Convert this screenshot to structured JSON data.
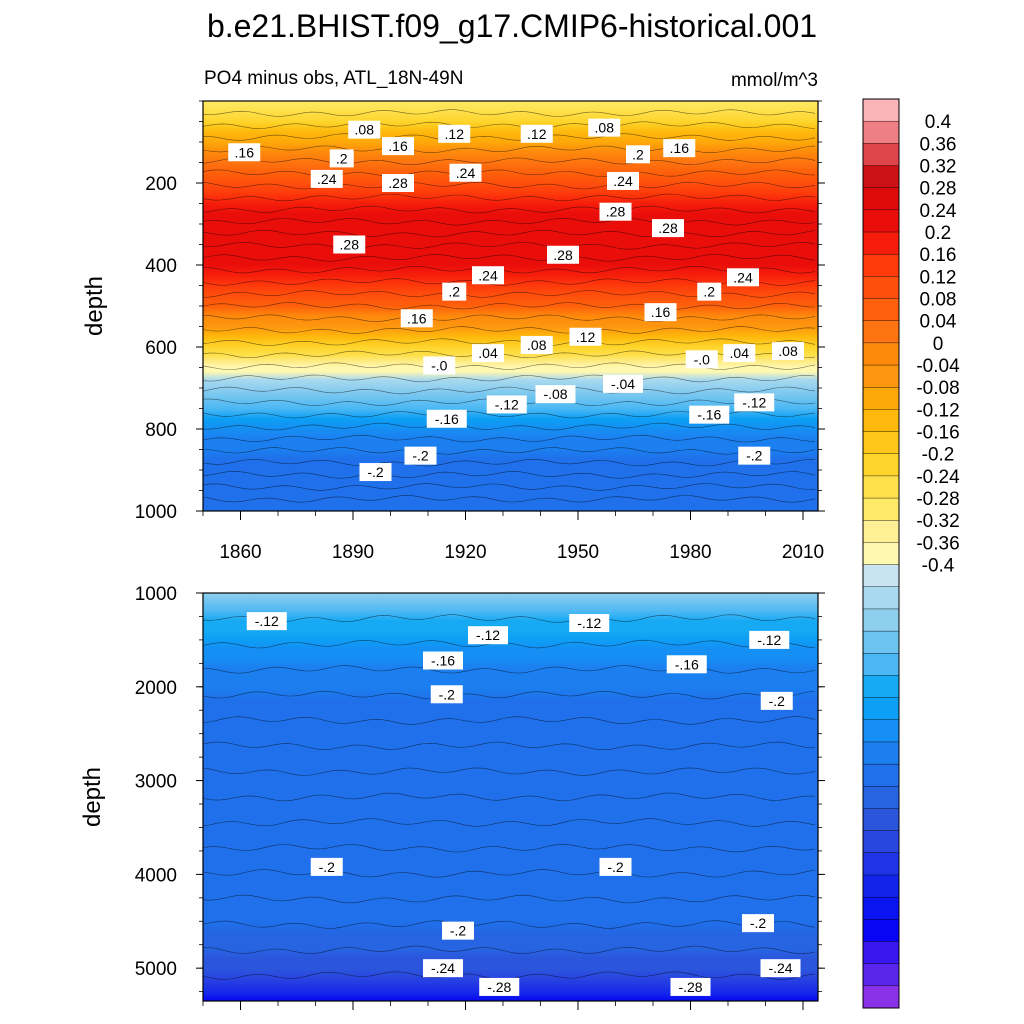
{
  "chart_data": [
    {
      "type": "heatmap",
      "panel": "upper",
      "title": "b.e21.BHIST.f09_g17.CMIP6-historical.001",
      "subtitle_left": "PO4 minus obs, ATL_18N-49N",
      "subtitle_right": "mmol/m^3",
      "xlabel": "",
      "ylabel": "depth",
      "xlim": [
        1850,
        2014
      ],
      "ylim": [
        1000,
        0
      ],
      "x_ticks": [
        "1860",
        "1890",
        "1920",
        "1950",
        "1980",
        "2010"
      ],
      "x_tick_values": [
        1860,
        1890,
        1920,
        1950,
        1980,
        2010
      ],
      "y_ticks": [
        "200",
        "400",
        "600",
        "800",
        "1000"
      ],
      "y_tick_values": [
        200,
        400,
        600,
        800,
        1000
      ],
      "depth_profile": [
        {
          "depth": 0,
          "value": 0.04
        },
        {
          "depth": 50,
          "value": 0.08
        },
        {
          "depth": 100,
          "value": 0.15
        },
        {
          "depth": 150,
          "value": 0.2
        },
        {
          "depth": 200,
          "value": 0.25
        },
        {
          "depth": 250,
          "value": 0.29
        },
        {
          "depth": 300,
          "value": 0.31
        },
        {
          "depth": 350,
          "value": 0.315
        },
        {
          "depth": 400,
          "value": 0.3
        },
        {
          "depth": 450,
          "value": 0.27
        },
        {
          "depth": 500,
          "value": 0.22
        },
        {
          "depth": 550,
          "value": 0.16
        },
        {
          "depth": 600,
          "value": 0.09
        },
        {
          "depth": 640,
          "value": 0.02
        },
        {
          "depth": 660,
          "value": -0.005
        },
        {
          "depth": 700,
          "value": -0.06
        },
        {
          "depth": 750,
          "value": -0.11
        },
        {
          "depth": 800,
          "value": -0.16
        },
        {
          "depth": 850,
          "value": -0.19
        },
        {
          "depth": 900,
          "value": -0.2
        },
        {
          "depth": 1000,
          "value": -0.2
        }
      ],
      "contour_labels": [
        {
          "text": ".08",
          "year": 1893,
          "depth": 70
        },
        {
          "text": ".16",
          "year": 1861,
          "depth": 125
        },
        {
          "text": ".16",
          "year": 1902,
          "depth": 110
        },
        {
          "text": ".12",
          "year": 1917,
          "depth": 80
        },
        {
          "text": ".12",
          "year": 1939,
          "depth": 80
        },
        {
          "text": ".08",
          "year": 1957,
          "depth": 65
        },
        {
          "text": ".16",
          "year": 1977,
          "depth": 115
        },
        {
          "text": ".2",
          "year": 1966,
          "depth": 130
        },
        {
          "text": ".2",
          "year": 1887,
          "depth": 140
        },
        {
          "text": ".24",
          "year": 1883,
          "depth": 190
        },
        {
          "text": ".28",
          "year": 1902,
          "depth": 200
        },
        {
          "text": ".24",
          "year": 1920,
          "depth": 175
        },
        {
          "text": ".24",
          "year": 1962,
          "depth": 195
        },
        {
          "text": ".28",
          "year": 1960,
          "depth": 270
        },
        {
          "text": ".28",
          "year": 1974,
          "depth": 310
        },
        {
          "text": ".28",
          "year": 1889,
          "depth": 350
        },
        {
          "text": ".28",
          "year": 1946,
          "depth": 375
        },
        {
          "text": ".24",
          "year": 1926,
          "depth": 425
        },
        {
          "text": ".2",
          "year": 1917,
          "depth": 465
        },
        {
          "text": ".24",
          "year": 1994,
          "depth": 430
        },
        {
          "text": ".2",
          "year": 1985,
          "depth": 465
        },
        {
          "text": ".16",
          "year": 1907,
          "depth": 530
        },
        {
          "text": ".16",
          "year": 1972,
          "depth": 515
        },
        {
          "text": ".12",
          "year": 1952,
          "depth": 575
        },
        {
          "text": ".08",
          "year": 1939,
          "depth": 595
        },
        {
          "text": ".04",
          "year": 1926,
          "depth": 615
        },
        {
          "text": ".04",
          "year": 1993,
          "depth": 615
        },
        {
          "text": ".08",
          "year": 2006,
          "depth": 610
        },
        {
          "text": "-.0",
          "year": 1913,
          "depth": 645
        },
        {
          "text": "-.0",
          "year": 1983,
          "depth": 630
        },
        {
          "text": "-.04",
          "year": 1962,
          "depth": 690
        },
        {
          "text": "-.08",
          "year": 1944,
          "depth": 715
        },
        {
          "text": "-.12",
          "year": 1931,
          "depth": 740
        },
        {
          "text": "-.12",
          "year": 1997,
          "depth": 735
        },
        {
          "text": "-.16",
          "year": 1915,
          "depth": 775
        },
        {
          "text": "-.16",
          "year": 1985,
          "depth": 765
        },
        {
          "text": "-.2",
          "year": 1908,
          "depth": 865
        },
        {
          "text": "-.2",
          "year": 1997,
          "depth": 865
        },
        {
          "text": "-.2",
          "year": 1896,
          "depth": 905
        }
      ]
    },
    {
      "type": "heatmap",
      "panel": "lower",
      "xlabel": "",
      "ylabel": "depth",
      "xlim": [
        1850,
        2014
      ],
      "ylim": [
        5350,
        1000
      ],
      "y_ticks": [
        "1000",
        "2000",
        "3000",
        "4000",
        "5000"
      ],
      "y_tick_values": [
        1000,
        2000,
        3000,
        4000,
        5000
      ],
      "depth_profile": [
        {
          "depth": 1000,
          "value": -0.06
        },
        {
          "depth": 1200,
          "value": -0.1
        },
        {
          "depth": 1400,
          "value": -0.13
        },
        {
          "depth": 1600,
          "value": -0.155
        },
        {
          "depth": 1800,
          "value": -0.175
        },
        {
          "depth": 2000,
          "value": -0.19
        },
        {
          "depth": 2300,
          "value": -0.2
        },
        {
          "depth": 3000,
          "value": -0.215
        },
        {
          "depth": 4500,
          "value": -0.215
        },
        {
          "depth": 4800,
          "value": -0.23
        },
        {
          "depth": 5000,
          "value": -0.245
        },
        {
          "depth": 5200,
          "value": -0.28
        },
        {
          "depth": 5350,
          "value": -0.34
        }
      ],
      "contour_labels": [
        {
          "text": "-.12",
          "year": 1867,
          "depth": 1300
        },
        {
          "text": "-.12",
          "year": 1926,
          "depth": 1450
        },
        {
          "text": "-.12",
          "year": 1953,
          "depth": 1320
        },
        {
          "text": "-.12",
          "year": 2001,
          "depth": 1500
        },
        {
          "text": "-.16",
          "year": 1914,
          "depth": 1720
        },
        {
          "text": "-.16",
          "year": 1979,
          "depth": 1760
        },
        {
          "text": "-.2",
          "year": 1915,
          "depth": 2080
        },
        {
          "text": "-.2",
          "year": 2003,
          "depth": 2150
        },
        {
          "text": "-.2",
          "year": 1883,
          "depth": 3920
        },
        {
          "text": "-.2",
          "year": 1960,
          "depth": 3920
        },
        {
          "text": "-.2",
          "year": 1918,
          "depth": 4600
        },
        {
          "text": "-.2",
          "year": 1998,
          "depth": 4520
        },
        {
          "text": "-.24",
          "year": 1914,
          "depth": 5000
        },
        {
          "text": "-.24",
          "year": 2004,
          "depth": 5000
        },
        {
          "text": "-.28",
          "year": 1929,
          "depth": 5200
        },
        {
          "text": "-.28",
          "year": 1980,
          "depth": 5200
        }
      ]
    }
  ],
  "colorbar": {
    "labels": [
      "0.4",
      "0.36",
      "0.32",
      "0.28",
      "0.24",
      "0.2",
      "0.16",
      "0.12",
      "0.08",
      "0.04",
      "0",
      "-0.04",
      "-0.08",
      "-0.12",
      "-0.16",
      "-0.2",
      "-0.24",
      "-0.28",
      "-0.32",
      "-0.36",
      "-0.4"
    ],
    "colors_top_to_bottom": [
      "#f9b5b8",
      "#ef7f82",
      "#e0454b",
      "#cc1214",
      "#df0a0a",
      "#ea0e0b",
      "#f61e0b",
      "#fe3a0b",
      "#fe500c",
      "#fe600b",
      "#fe7410",
      "#fe8a0c",
      "#fe960f",
      "#fea80a",
      "#feb90c",
      "#fec71a",
      "#fed52c",
      "#fee04a",
      "#feea66",
      "#fff095",
      "#fff8b0",
      "#c8e4f2",
      "#a9d9ef",
      "#8fcfee",
      "#6cc3f0",
      "#4bb8f3",
      "#16a9f4",
      "#0d9ff5",
      "#158ff3",
      "#1c7ff0",
      "#1f70ea",
      "#2664e2",
      "#2b56dc",
      "#2a46e0",
      "#1f34e6",
      "#1224ec",
      "#0a14f0",
      "#0805f4",
      "#3a16ef",
      "#5a25ea",
      "#8b31e8"
    ]
  }
}
